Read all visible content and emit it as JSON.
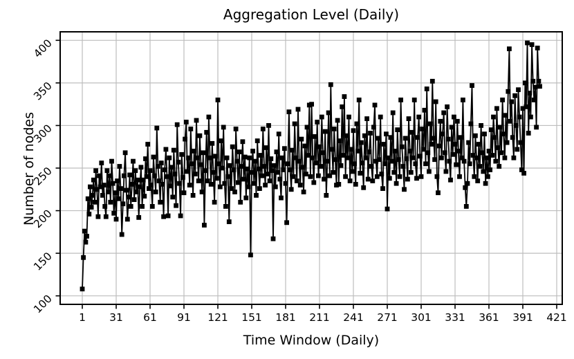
{
  "chart_data": {
    "type": "line",
    "title": "Aggregation Level (Daily)",
    "xlabel": "Time Window (Daily)",
    "ylabel": "Number of nodes",
    "marker": "square",
    "line_color": "#000000",
    "marker_color": "#000000",
    "grid": true,
    "grid_color": "#bdbdbd",
    "legend": "none",
    "xlim": [
      -18.6,
      425.9
    ],
    "ylim": [
      90,
      410
    ],
    "xticks": [
      1,
      31,
      61,
      91,
      121,
      151,
      181,
      211,
      241,
      271,
      301,
      331,
      361,
      391,
      421
    ],
    "yticks": [
      100,
      150,
      200,
      250,
      300,
      350,
      400
    ],
    "x_start": 1,
    "x_step": 1,
    "values": [
      108,
      145,
      176,
      163,
      170,
      214,
      196,
      228,
      204,
      218,
      236,
      210,
      247,
      225,
      193,
      241,
      228,
      256,
      218,
      230,
      205,
      193,
      247,
      222,
      241,
      210,
      258,
      232,
      197,
      221,
      190,
      235,
      214,
      252,
      226,
      172,
      208,
      241,
      268,
      224,
      190,
      216,
      242,
      205,
      231,
      258,
      213,
      247,
      222,
      236,
      192,
      228,
      251,
      205,
      236,
      217,
      261,
      240,
      278,
      226,
      247,
      230,
      205,
      263,
      241,
      222,
      297,
      252,
      235,
      210,
      256,
      231,
      193,
      248,
      272,
      240,
      194,
      262,
      229,
      251,
      216,
      271,
      243,
      206,
      301,
      257,
      232,
      194,
      266,
      239,
      221,
      284,
      304,
      246,
      262,
      230,
      296,
      255,
      218,
      270,
      243,
      306,
      262,
      235,
      288,
      254,
      222,
      268,
      183,
      247,
      292,
      235,
      310,
      262,
      231,
      279,
      245,
      210,
      264,
      238,
      330,
      255,
      228,
      282,
      250,
      298,
      232,
      205,
      262,
      240,
      187,
      253,
      226,
      275,
      248,
      222,
      296,
      258,
      233,
      269,
      210,
      252,
      281,
      237,
      263,
      215,
      249,
      228,
      262,
      148,
      245,
      270,
      232,
      258,
      218,
      282,
      249,
      226,
      265,
      241,
      296,
      252,
      230,
      274,
      243,
      300,
      235,
      261,
      247,
      167,
      253,
      228,
      269,
      245,
      290,
      237,
      215,
      262,
      248,
      273,
      232,
      186,
      255,
      316,
      248,
      225,
      271,
      240,
      302,
      262,
      235,
      319,
      258,
      230,
      284,
      251,
      222,
      276,
      243,
      298,
      265,
      324,
      240,
      325,
      262,
      233,
      287,
      256,
      304,
      241,
      275,
      252,
      310,
      268,
      237,
      293,
      218,
      258,
      315,
      241,
      348,
      272,
      245,
      296,
      260,
      230,
      306,
      231,
      282,
      253,
      322,
      265,
      334,
      240,
      288,
      262,
      310,
      235,
      272,
      246,
      294,
      255,
      231,
      302,
      270,
      330,
      244,
      280,
      256,
      227,
      288,
      262,
      308,
      237,
      269,
      291,
      252,
      235,
      298,
      324,
      258,
      240,
      285,
      260,
      310,
      243,
      226,
      278,
      255,
      290,
      202,
      262,
      238,
      286,
      258,
      315,
      245,
      270,
      232,
      295,
      260,
      240,
      330,
      275,
      252,
      225,
      285,
      261,
      237,
      308,
      270,
      245,
      292,
      262,
      330,
      255,
      238,
      286,
      310,
      264,
      240,
      296,
      272,
      318,
      255,
      343,
      268,
      246,
      302,
      278,
      352,
      285,
      260,
      328,
      240,
      221,
      276,
      305,
      262,
      290,
      315,
      268,
      246,
      322,
      284,
      258,
      236,
      298,
      266,
      310,
      278,
      254,
      305,
      270,
      240,
      286,
      262,
      330,
      258,
      227,
      205,
      232,
      280,
      255,
      302,
      347,
      265,
      240,
      288,
      262,
      235,
      278,
      252,
      300,
      268,
      246,
      290,
      232,
      262,
      240,
      270,
      248,
      295,
      265,
      310,
      286,
      258,
      320,
      274,
      252,
      298,
      268,
      330,
      290,
      262,
      312,
      280,
      340,
      390,
      305,
      328,
      286,
      262,
      335,
      300,
      272,
      342,
      310,
      280,
      248,
      320,
      244,
      350,
      322,
      397,
      291,
      338,
      310,
      395,
      352,
      330,
      345,
      298,
      391,
      352,
      346
    ]
  }
}
